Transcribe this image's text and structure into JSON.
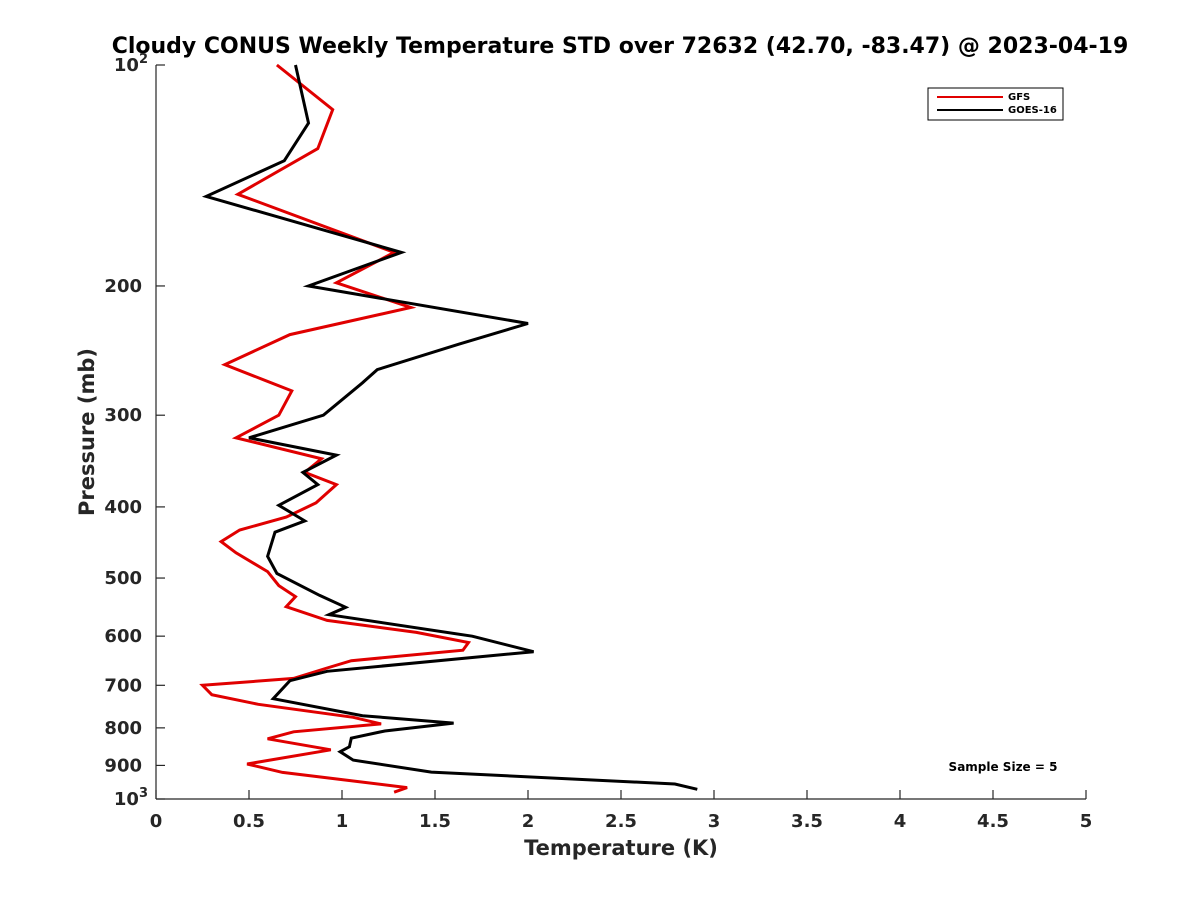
{
  "chart_data": {
    "type": "line",
    "title": "Cloudy CONUS Weekly Temperature STD over 72632 (42.70, -83.47) @ 2023-04-19",
    "xlabel": "Temperature (K)",
    "ylabel": "Pressure (mb)",
    "xlim": [
      0,
      5
    ],
    "ylim": [
      100,
      1000
    ],
    "y_scale": "log",
    "y_reversed": true,
    "grid": false,
    "legend_position": "top-right",
    "x_ticks": [
      "0",
      "0.5",
      "1",
      "1.5",
      "2",
      "2.5",
      "3",
      "3.5",
      "4",
      "4.5",
      "5"
    ],
    "y_ticks": [
      {
        "value": 100,
        "base": "10",
        "exp": "2"
      },
      {
        "value": 200,
        "label": "200"
      },
      {
        "value": 300,
        "label": "300"
      },
      {
        "value": 400,
        "label": "400"
      },
      {
        "value": 500,
        "label": "500"
      },
      {
        "value": 600,
        "label": "600"
      },
      {
        "value": 700,
        "label": "700"
      },
      {
        "value": 800,
        "label": "800"
      },
      {
        "value": 900,
        "label": "900"
      },
      {
        "value": 1000,
        "base": "10",
        "exp": "3"
      }
    ],
    "annotation": "Sample Size = 5",
    "series": [
      {
        "name": "GFS",
        "color": "#e00000",
        "points": [
          [
            0.65,
            100
          ],
          [
            0.95,
            115
          ],
          [
            0.87,
            130
          ],
          [
            0.44,
            150
          ],
          [
            1.28,
            180
          ],
          [
            0.97,
            198
          ],
          [
            1.37,
            214
          ],
          [
            0.72,
            233
          ],
          [
            0.37,
            256
          ],
          [
            0.73,
            278
          ],
          [
            0.66,
            300
          ],
          [
            0.43,
            322
          ],
          [
            0.89,
            344
          ],
          [
            0.8,
            359
          ],
          [
            0.97,
            373
          ],
          [
            0.86,
            395
          ],
          [
            0.7,
            413
          ],
          [
            0.45,
            430
          ],
          [
            0.35,
            446
          ],
          [
            0.43,
            462
          ],
          [
            0.6,
            490
          ],
          [
            0.66,
            512
          ],
          [
            0.75,
            530
          ],
          [
            0.7,
            547
          ],
          [
            0.92,
            571
          ],
          [
            1.4,
            593
          ],
          [
            1.68,
            612
          ],
          [
            1.65,
            627
          ],
          [
            1.05,
            648
          ],
          [
            0.92,
            663
          ],
          [
            0.74,
            685
          ],
          [
            0.25,
            700
          ],
          [
            0.3,
            721
          ],
          [
            0.55,
            743
          ],
          [
            1.06,
            774
          ],
          [
            1.21,
            790
          ],
          [
            0.74,
            810
          ],
          [
            0.6,
            828
          ],
          [
            0.94,
            857
          ],
          [
            0.49,
            896
          ],
          [
            0.68,
            920
          ],
          [
            1.0,
            941
          ],
          [
            1.35,
            965
          ],
          [
            1.28,
            979
          ]
        ]
      },
      {
        "name": "GOES-16",
        "color": "#000000",
        "points": [
          [
            0.75,
            100
          ],
          [
            0.82,
            120
          ],
          [
            0.69,
            135
          ],
          [
            0.27,
            151
          ],
          [
            1.32,
            180
          ],
          [
            0.82,
            200
          ],
          [
            2.0,
            225
          ],
          [
            1.63,
            240
          ],
          [
            1.19,
            260
          ],
          [
            1.11,
            271
          ],
          [
            0.9,
            300
          ],
          [
            0.5,
            322
          ],
          [
            0.97,
            340
          ],
          [
            0.79,
            359
          ],
          [
            0.87,
            373
          ],
          [
            0.66,
            398
          ],
          [
            0.8,
            418
          ],
          [
            0.64,
            433
          ],
          [
            0.6,
            467
          ],
          [
            0.65,
            493
          ],
          [
            0.88,
            528
          ],
          [
            1.02,
            548
          ],
          [
            0.93,
            561
          ],
          [
            1.7,
            600
          ],
          [
            2.03,
            630
          ],
          [
            0.92,
            670
          ],
          [
            0.72,
            690
          ],
          [
            0.63,
            730
          ],
          [
            1.11,
            770
          ],
          [
            1.6,
            788
          ],
          [
            1.23,
            808
          ],
          [
            1.05,
            826
          ],
          [
            1.04,
            849
          ],
          [
            0.99,
            862
          ],
          [
            1.06,
            885
          ],
          [
            1.48,
            919
          ],
          [
            2.79,
            954
          ],
          [
            2.91,
            970
          ]
        ]
      }
    ]
  }
}
